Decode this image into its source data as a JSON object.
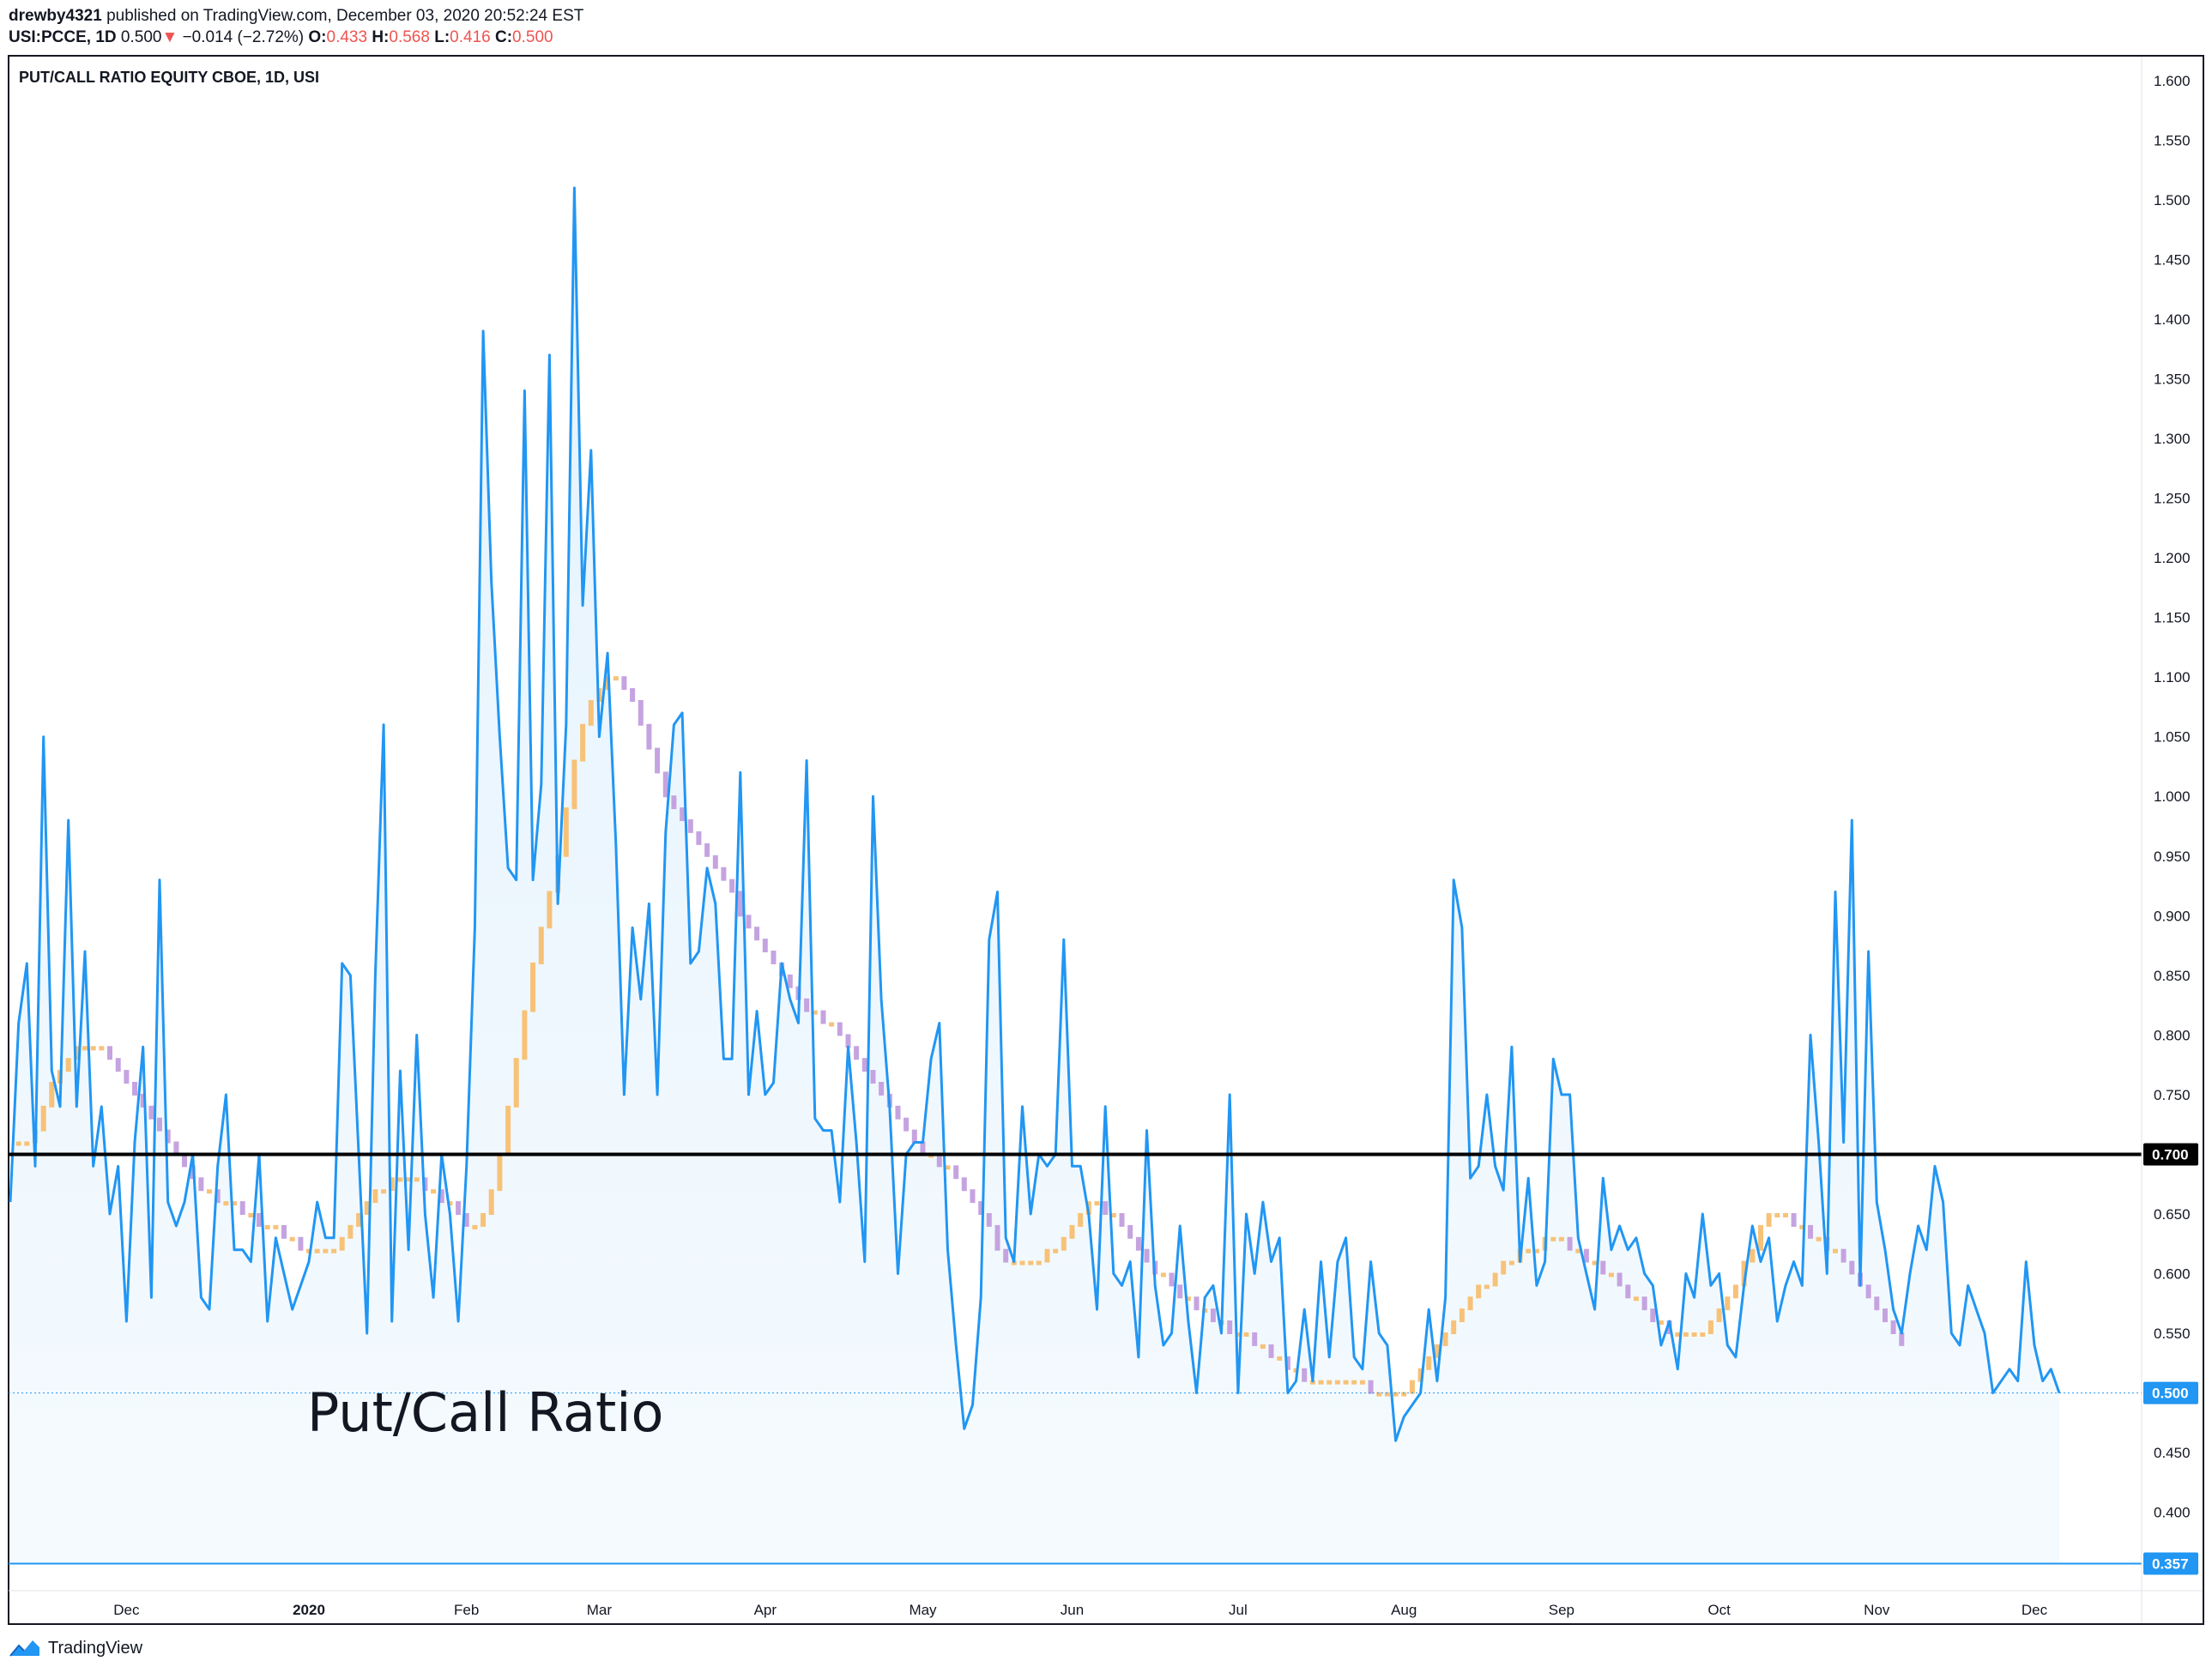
{
  "header": {
    "user": "drewby4321",
    "published": "published on TradingView.com, December 03, 2020 20:52:24 EST",
    "symbol": "USI:PCCE, 1D",
    "last": "0.500",
    "change_arrow": "▼",
    "change": "−0.014 (−2.72%)",
    "open_label": "O:",
    "open": "0.433",
    "high_label": "H:",
    "high": "0.568",
    "low_label": "L:",
    "low": "0.416",
    "close_label": "C:",
    "close": "0.500"
  },
  "footer": {
    "brand": "TradingView",
    "logo_icon": "tradingview-logo-icon"
  },
  "colors": {
    "line": "#2196f3",
    "fill": "#e3f2fd",
    "ma_up": "#f7c278",
    "ma_down": "#c5a3e0",
    "level": "#000000",
    "current": "#2196f3"
  },
  "chart_data": {
    "type": "line",
    "title": "PUT/CALL RATIO EQUITY CBOE, 1D, USI",
    "annotation": "Put/Call Ratio",
    "ylim": [
      0.33,
      1.62
    ],
    "y_ticks": [
      "0.400",
      "0.450",
      "0.550",
      "0.600",
      "0.650",
      "0.750",
      "0.800",
      "0.850",
      "0.900",
      "0.950",
      "1.000",
      "1.050",
      "1.100",
      "1.150",
      "1.200",
      "1.250",
      "1.300",
      "1.350",
      "1.400",
      "1.450",
      "1.500",
      "1.550",
      "1.600"
    ],
    "x_ticks": [
      "Dec",
      "2020",
      "Feb",
      "Mar",
      "Apr",
      "May",
      "Jun",
      "Jul",
      "Aug",
      "Sep",
      "Oct",
      "Nov",
      "Dec"
    ],
    "x_tick_days": [
      14,
      36,
      55,
      71,
      91,
      110,
      128,
      148,
      168,
      187,
      206,
      225,
      244
    ],
    "level_line": {
      "value": 0.7,
      "label": "0.700"
    },
    "current_value": {
      "value": 0.5,
      "label": "0.500"
    },
    "lower_line": {
      "value": 0.357,
      "label": "0.357"
    },
    "series": [
      {
        "values": [
          0.66,
          0.81,
          0.86,
          0.69,
          1.05,
          0.77,
          0.74,
          0.98,
          0.74,
          0.87,
          0.69,
          0.74,
          0.65,
          0.69,
          0.56,
          0.71,
          0.79,
          0.58,
          0.93,
          0.66,
          0.64,
          0.66,
          0.7,
          0.58,
          0.57,
          0.69,
          0.75,
          0.62,
          0.62,
          0.61,
          0.7,
          0.56,
          0.63,
          0.6,
          0.57,
          0.59,
          0.61,
          0.66,
          0.63,
          0.63,
          0.86,
          0.85,
          0.7,
          0.55,
          0.85,
          1.06,
          0.56,
          0.77,
          0.62,
          0.8,
          0.65,
          0.58,
          0.7,
          0.65,
          0.56,
          0.69,
          0.89,
          1.39,
          1.18,
          1.05,
          0.94,
          0.93,
          1.34,
          0.93,
          1.01,
          1.37,
          0.91,
          1.06,
          1.51,
          1.16,
          1.29,
          1.05,
          1.12,
          0.96,
          0.75,
          0.89,
          0.83,
          0.91,
          0.75,
          0.97,
          1.06,
          1.07,
          0.86,
          0.87,
          0.94,
          0.91,
          0.78,
          0.78,
          1.02,
          0.75,
          0.82,
          0.75,
          0.76,
          0.86,
          0.83,
          0.81,
          1.03,
          0.73,
          0.72,
          0.72,
          0.66,
          0.79,
          0.71,
          0.61,
          1.0,
          0.83,
          0.74,
          0.6,
          0.7,
          0.71,
          0.71,
          0.78,
          0.81,
          0.62,
          0.54,
          0.47,
          0.49,
          0.58,
          0.88,
          0.92,
          0.63,
          0.61,
          0.74,
          0.65,
          0.7,
          0.69,
          0.7,
          0.88,
          0.69,
          0.69,
          0.65,
          0.57,
          0.74,
          0.6,
          0.59,
          0.61,
          0.53,
          0.72,
          0.59,
          0.54,
          0.55,
          0.64,
          0.56,
          0.5,
          0.58,
          0.59,
          0.55,
          0.75,
          0.5,
          0.65,
          0.6,
          0.66,
          0.61,
          0.63,
          0.5,
          0.51,
          0.57,
          0.51,
          0.61,
          0.53,
          0.61,
          0.63,
          0.53,
          0.52,
          0.61,
          0.55,
          0.54,
          0.46,
          0.48,
          0.49,
          0.5,
          0.57,
          0.51,
          0.58,
          0.93,
          0.89,
          0.68,
          0.69,
          0.75,
          0.69,
          0.67,
          0.79,
          0.61,
          0.68,
          0.59,
          0.61,
          0.78,
          0.75,
          0.75,
          0.63,
          0.6,
          0.57,
          0.68,
          0.62,
          0.64,
          0.62,
          0.63,
          0.6,
          0.59,
          0.54,
          0.56,
          0.52,
          0.6,
          0.58,
          0.65,
          0.59,
          0.6,
          0.54,
          0.53,
          0.59,
          0.64,
          0.61,
          0.63,
          0.56,
          0.59,
          0.61,
          0.59,
          0.8,
          0.71,
          0.6,
          0.92,
          0.71,
          0.98,
          0.59,
          0.87,
          0.66,
          0.62,
          0.57,
          0.55,
          0.6,
          0.64,
          0.62,
          0.69,
          0.66,
          0.55,
          0.54,
          0.59,
          0.57,
          0.55,
          0.5,
          0.51,
          0.52,
          0.51,
          0.61,
          0.54,
          0.51,
          0.52,
          0.5
        ]
      },
      {
        "name": "",
        "type": "moving-average",
        "values": [
          0.71,
          0.71,
          0.71,
          0.72,
          0.74,
          0.76,
          0.77,
          0.78,
          0.79,
          0.79,
          0.79,
          0.79,
          0.78,
          0.77,
          0.76,
          0.75,
          0.74,
          0.73,
          0.72,
          0.71,
          0.7,
          0.69,
          0.68,
          0.67,
          0.67,
          0.66,
          0.66,
          0.66,
          0.65,
          0.65,
          0.64,
          0.64,
          0.64,
          0.63,
          0.63,
          0.62,
          0.62,
          0.62,
          0.62,
          0.62,
          0.63,
          0.64,
          0.65,
          0.66,
          0.67,
          0.67,
          0.68,
          0.68,
          0.68,
          0.68,
          0.67,
          0.67,
          0.66,
          0.66,
          0.65,
          0.64,
          0.64,
          0.65,
          0.67,
          0.7,
          0.74,
          0.78,
          0.82,
          0.86,
          0.89,
          0.92,
          0.95,
          0.99,
          1.03,
          1.06,
          1.08,
          1.09,
          1.1,
          1.1,
          1.09,
          1.08,
          1.06,
          1.04,
          1.02,
          1.0,
          0.99,
          0.98,
          0.97,
          0.96,
          0.95,
          0.94,
          0.93,
          0.92,
          0.9,
          0.89,
          0.88,
          0.87,
          0.86,
          0.85,
          0.84,
          0.83,
          0.82,
          0.82,
          0.81,
          0.81,
          0.8,
          0.79,
          0.78,
          0.77,
          0.76,
          0.75,
          0.74,
          0.73,
          0.72,
          0.71,
          0.7,
          0.7,
          0.69,
          0.69,
          0.68,
          0.67,
          0.66,
          0.65,
          0.64,
          0.62,
          0.61,
          0.61,
          0.61,
          0.61,
          0.61,
          0.62,
          0.62,
          0.63,
          0.64,
          0.65,
          0.66,
          0.66,
          0.65,
          0.65,
          0.64,
          0.63,
          0.62,
          0.61,
          0.6,
          0.6,
          0.59,
          0.58,
          0.58,
          0.57,
          0.57,
          0.56,
          0.56,
          0.55,
          0.55,
          0.55,
          0.54,
          0.54,
          0.53,
          0.53,
          0.52,
          0.52,
          0.51,
          0.51,
          0.51,
          0.51,
          0.51,
          0.51,
          0.51,
          0.51,
          0.5,
          0.5,
          0.5,
          0.5,
          0.5,
          0.51,
          0.52,
          0.53,
          0.54,
          0.55,
          0.56,
          0.57,
          0.58,
          0.59,
          0.59,
          0.6,
          0.61,
          0.61,
          0.62,
          0.62,
          0.62,
          0.63,
          0.63,
          0.63,
          0.62,
          0.62,
          0.61,
          0.61,
          0.6,
          0.6,
          0.59,
          0.58,
          0.58,
          0.57,
          0.56,
          0.56,
          0.55,
          0.55,
          0.55,
          0.55,
          0.55,
          0.56,
          0.57,
          0.58,
          0.59,
          0.61,
          0.62,
          0.64,
          0.65,
          0.65,
          0.65,
          0.64,
          0.64,
          0.63,
          0.63,
          0.62,
          0.62,
          0.61,
          0.6,
          0.59,
          0.58,
          0.57,
          0.56,
          0.55,
          0.54
        ]
      }
    ]
  }
}
